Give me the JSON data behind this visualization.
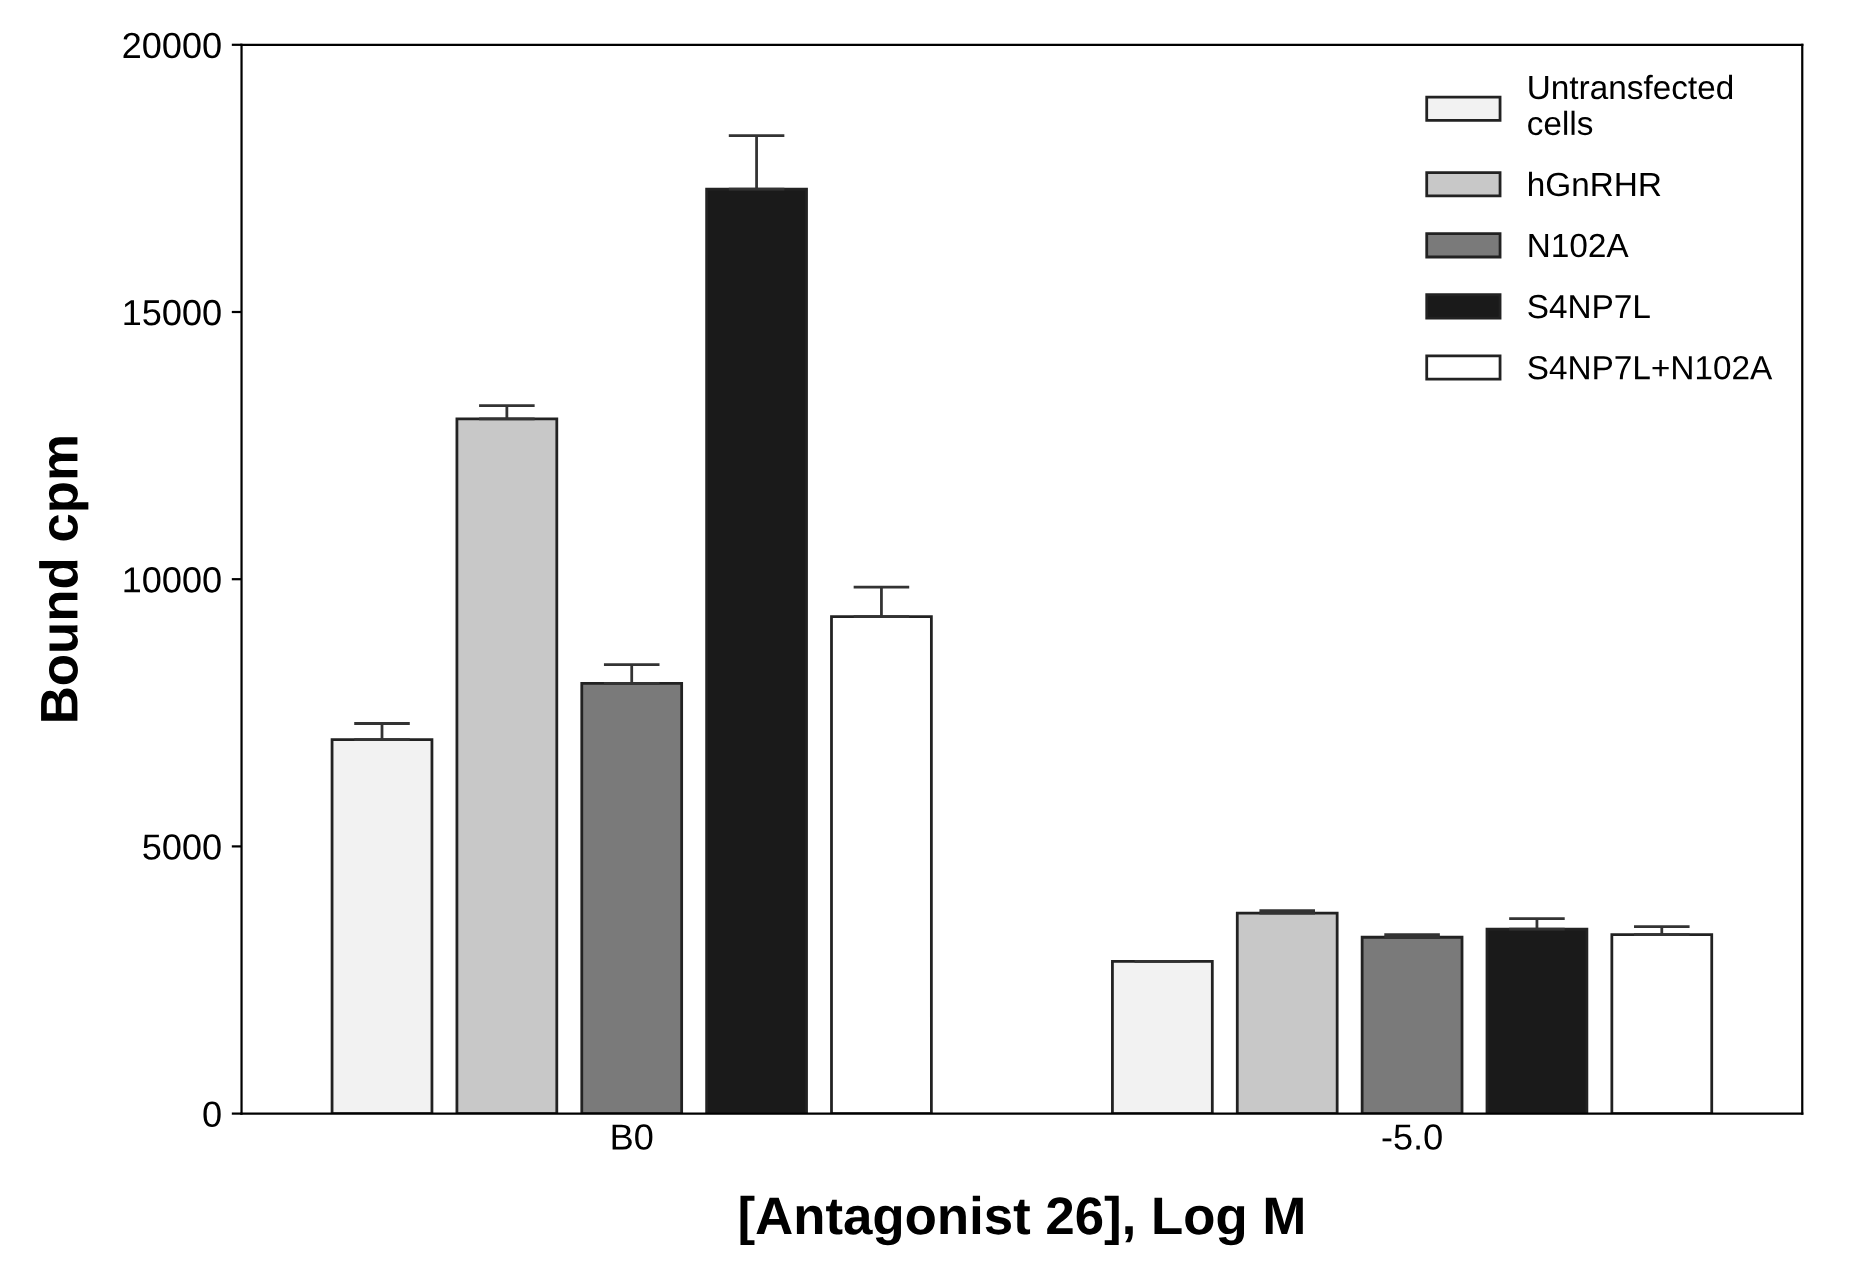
{
  "chart_data": {
    "type": "bar",
    "xlabel": "[Antagonist 26], Log M",
    "ylabel": "Bound cpm",
    "categories": [
      "B0",
      "-5.0"
    ],
    "series": [
      {
        "name": "Untransfected\ncells",
        "color": "#f2f2f2",
        "values": [
          7000,
          2850
        ],
        "errors": [
          300,
          null
        ]
      },
      {
        "name": "hGnRHR",
        "color": "#c8c8c8",
        "values": [
          13000,
          3750
        ],
        "errors": [
          250,
          50
        ]
      },
      {
        "name": "N102A",
        "color": "#7a7a7a",
        "values": [
          8050,
          3300
        ],
        "errors": [
          350,
          50
        ]
      },
      {
        "name": "S4NP7L",
        "color": "#1a1a1a",
        "values": [
          17300,
          3450
        ],
        "errors": [
          1000,
          200
        ]
      },
      {
        "name": "S4NP7L+N102A",
        "color": "#ffffff",
        "values": [
          9300,
          3350
        ],
        "errors": [
          550,
          150
        ]
      }
    ],
    "ylim": [
      0,
      20000
    ],
    "yticks": [
      0,
      5000,
      10000,
      15000,
      20000
    ],
    "grid": false,
    "legend": "top right"
  }
}
